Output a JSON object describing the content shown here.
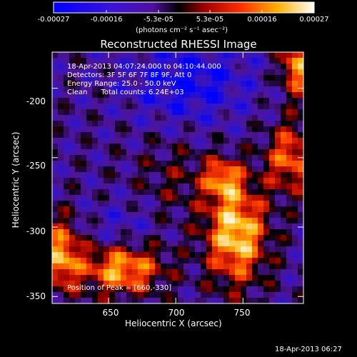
{
  "colorbar": {
    "ticks": [
      "-0.00027",
      "-0.00016",
      "-5.3e-05",
      "5.3e-05",
      "0.00016",
      "0.00027"
    ],
    "tick_values": [
      -0.00027,
      -0.00016,
      -5.3e-05,
      5.3e-05,
      0.00016,
      0.00027
    ],
    "units_label": "(photons cm⁻² s⁻¹ asec⁻²)",
    "colors": [
      "#0000ff",
      "#3a0ad0",
      "#5a1ab0",
      "#000000",
      "#a00000",
      "#ff3000",
      "#ffb000",
      "#ffffff"
    ]
  },
  "title": "Reconstructed RHESSI Image",
  "info": {
    "line1": "18-Apr-2013 04:07:24.000 to 04:10:44.000",
    "line2": "Detectors: 3F 5F 6F 7F 8F 9F, Att 0",
    "line3": "Energy Range: 25.0 - 50.0 keV",
    "line4": "Clean      Total counts: 6.24E+03"
  },
  "peak_label": "Position of Peak = [660,-330]",
  "timestamp": "18-Apr-2013 06:27",
  "chart_data": {
    "type": "heatmap",
    "title": "Reconstructed RHESSI Image",
    "xlabel": "Heliocentric X (arcsec)",
    "ylabel": "Heliocentric Y (arcsec)",
    "xlim": [
      608,
      795
    ],
    "ylim": [
      -355,
      -174
    ],
    "x_ticks": [
      650,
      700,
      750
    ],
    "y_ticks": [
      -200,
      -250,
      -300,
      -350
    ],
    "peak": [
      660,
      -330
    ],
    "colormap": "blue-purple-black-red-yellow-white",
    "clim": [
      -0.00027,
      0.00027
    ]
  }
}
